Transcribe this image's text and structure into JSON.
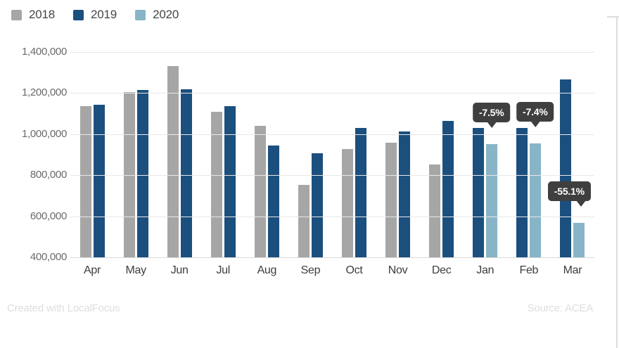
{
  "footer": {
    "left": "Created with LocalFocus",
    "right": "Source: ACEA"
  },
  "colors": {
    "series_2018": "#a6a6a6",
    "series_2019": "#1b4f7e",
    "series_2020": "#87b5c7",
    "tooltip_bg": "#3f3f3f",
    "tooltip_text": "#ffffff",
    "gridline": "#e8e8e8"
  },
  "chart_data": {
    "type": "bar",
    "categories": [
      "Apr",
      "May",
      "Jun",
      "Jul",
      "Aug",
      "Sep",
      "Oct",
      "Nov",
      "Dec",
      "Jan",
      "Feb",
      "Mar"
    ],
    "series": [
      {
        "name": "2018",
        "color": "#a6a6a6",
        "values": [
          1135000,
          1205000,
          1330000,
          1110000,
          1041000,
          753000,
          928000,
          958000,
          852000,
          null,
          null,
          null
        ]
      },
      {
        "name": "2019",
        "color": "#1b4f7e",
        "values": [
          1143000,
          1214000,
          1220000,
          1137000,
          945000,
          906000,
          1031000,
          1013000,
          1064000,
          1030000,
          1031000,
          1265000
        ]
      },
      {
        "name": "2020",
        "color": "#87b5c7",
        "values": [
          null,
          null,
          null,
          null,
          null,
          null,
          null,
          null,
          null,
          953000,
          954000,
          567000
        ]
      }
    ],
    "title": "",
    "xlabel": "",
    "ylabel": "",
    "ylim": [
      400000,
      1400000
    ],
    "ytick_step": 200000,
    "ytick_labels": [
      "400,000",
      "600,000",
      "800,000",
      "1,000,000",
      "1,200,000",
      "1,400,000"
    ],
    "grid": true,
    "legend_position": "top-left",
    "annotations": [
      {
        "label": "-7.5%",
        "category": "Jan",
        "series": "2020",
        "align": "center"
      },
      {
        "label": "-7.4%",
        "category": "Feb",
        "series": "2020",
        "align": "center"
      },
      {
        "label": "-55.1%",
        "category": "Mar",
        "series": "2020",
        "align": "right"
      }
    ]
  }
}
